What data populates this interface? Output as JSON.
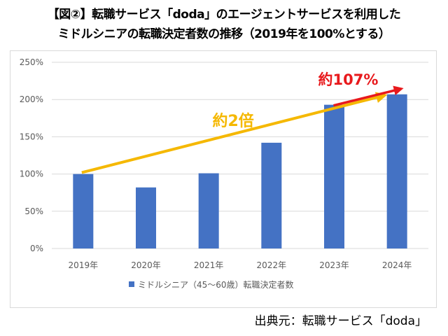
{
  "title_line1": "【図②】転職サービス「doda」のエージェントサービスを利用した",
  "title_line2": "ミドルシニアの転職決定者数の推移（2019年を100%とする）",
  "source": "出典元：転職サービス「doda」",
  "colors": {
    "bar": "#4472c4",
    "grid": "#d9d9d9",
    "axis_text": "#595959",
    "arrow_long": "#f5b800",
    "arrow_short": "#e8191c",
    "annot_long": "#f5b800",
    "annot_short": "#e8191c"
  },
  "chart_data": {
    "type": "bar",
    "categories": [
      "2019年",
      "2020年",
      "2021年",
      "2022年",
      "2023年",
      "2024年"
    ],
    "series": [
      {
        "name": "ミドルシニア（45～60歳）転職決定者数",
        "values": [
          100,
          82,
          101,
          142,
          193,
          207
        ]
      }
    ],
    "ylim": [
      0,
      250
    ],
    "yticks": [
      0,
      50,
      100,
      150,
      200,
      250
    ],
    "ytick_labels": [
      "0%",
      "50%",
      "100%",
      "150%",
      "200%",
      "250%"
    ],
    "legend_position": "bottom",
    "grid": true,
    "annotations": [
      {
        "text": "約2倍",
        "from_category": "2019年",
        "from_value": 102,
        "to_category": "2024年",
        "to_value": 205,
        "color_key": "arrow_long"
      },
      {
        "text": "約107%",
        "from_category": "2023年",
        "from_value": 192,
        "to_category": "2024年",
        "to_value": 214,
        "color_key": "arrow_short"
      }
    ]
  }
}
